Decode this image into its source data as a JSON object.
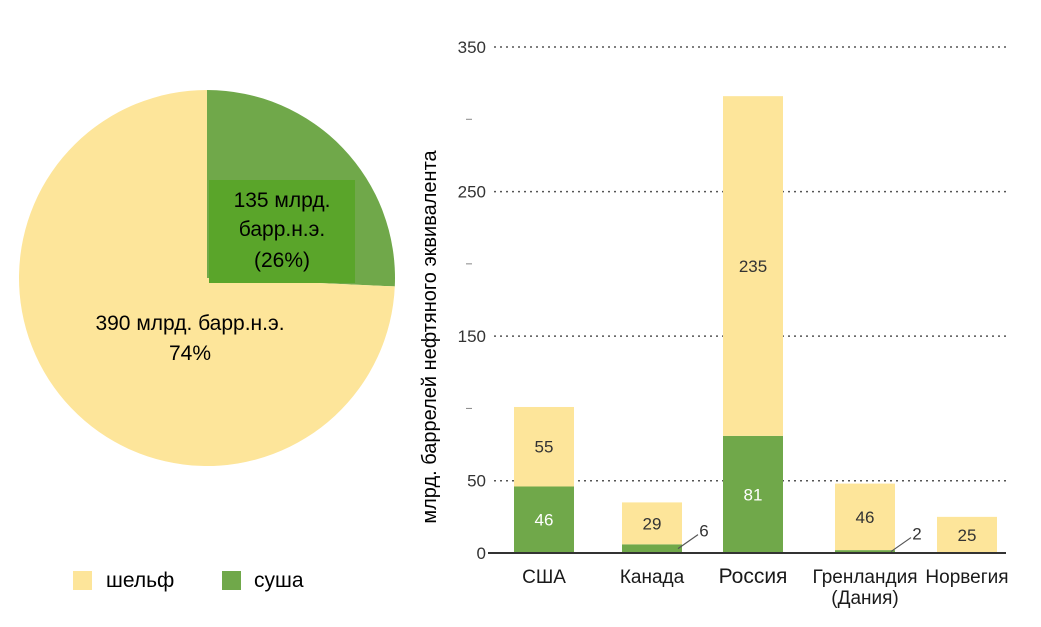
{
  "colors": {
    "shelf": "#fde59a",
    "land": "#70a84a",
    "land_label_bg": "#5aa52a",
    "gridline": "#555555",
    "axis": "#333333",
    "text": "#1a1a1a"
  },
  "legend": {
    "shelf_label": "шельф",
    "land_label": "суша"
  },
  "pie": {
    "land_label_lines": [
      "135 млрд.",
      "барр.н.э.",
      "(26%)"
    ],
    "shelf_label_lines": [
      "390 млрд. барр.н.э.",
      "74%"
    ]
  },
  "chart_data": [
    {
      "type": "pie",
      "slices": [
        {
          "name": "суша",
          "value": 135,
          "percent": 26
        },
        {
          "name": "шельф",
          "value": 390,
          "percent": 74
        }
      ]
    },
    {
      "type": "bar",
      "stacked": true,
      "categories": [
        [
          "США"
        ],
        [
          "Канада"
        ],
        [
          "Россия"
        ],
        [
          "Гренландия",
          "(Дания)"
        ],
        [
          "Норвегия"
        ]
      ],
      "series": [
        {
          "name": "суша",
          "values": [
            46,
            6,
            81,
            2,
            0
          ]
        },
        {
          "name": "шельф",
          "values": [
            55,
            29,
            235,
            46,
            25
          ]
        }
      ],
      "value_labels": {
        "суша": [
          "46",
          "6",
          "81",
          "2",
          ""
        ],
        "шельф": [
          "55",
          "29",
          "235",
          "46",
          "25"
        ]
      },
      "ylabel": "млрд. баррелей нефтяного эквивалента",
      "ylim": [
        0,
        350
      ],
      "yticks": [
        0,
        50,
        150,
        250,
        350
      ],
      "minor_ticks": [
        100,
        200,
        300
      ],
      "grid": true
    }
  ]
}
